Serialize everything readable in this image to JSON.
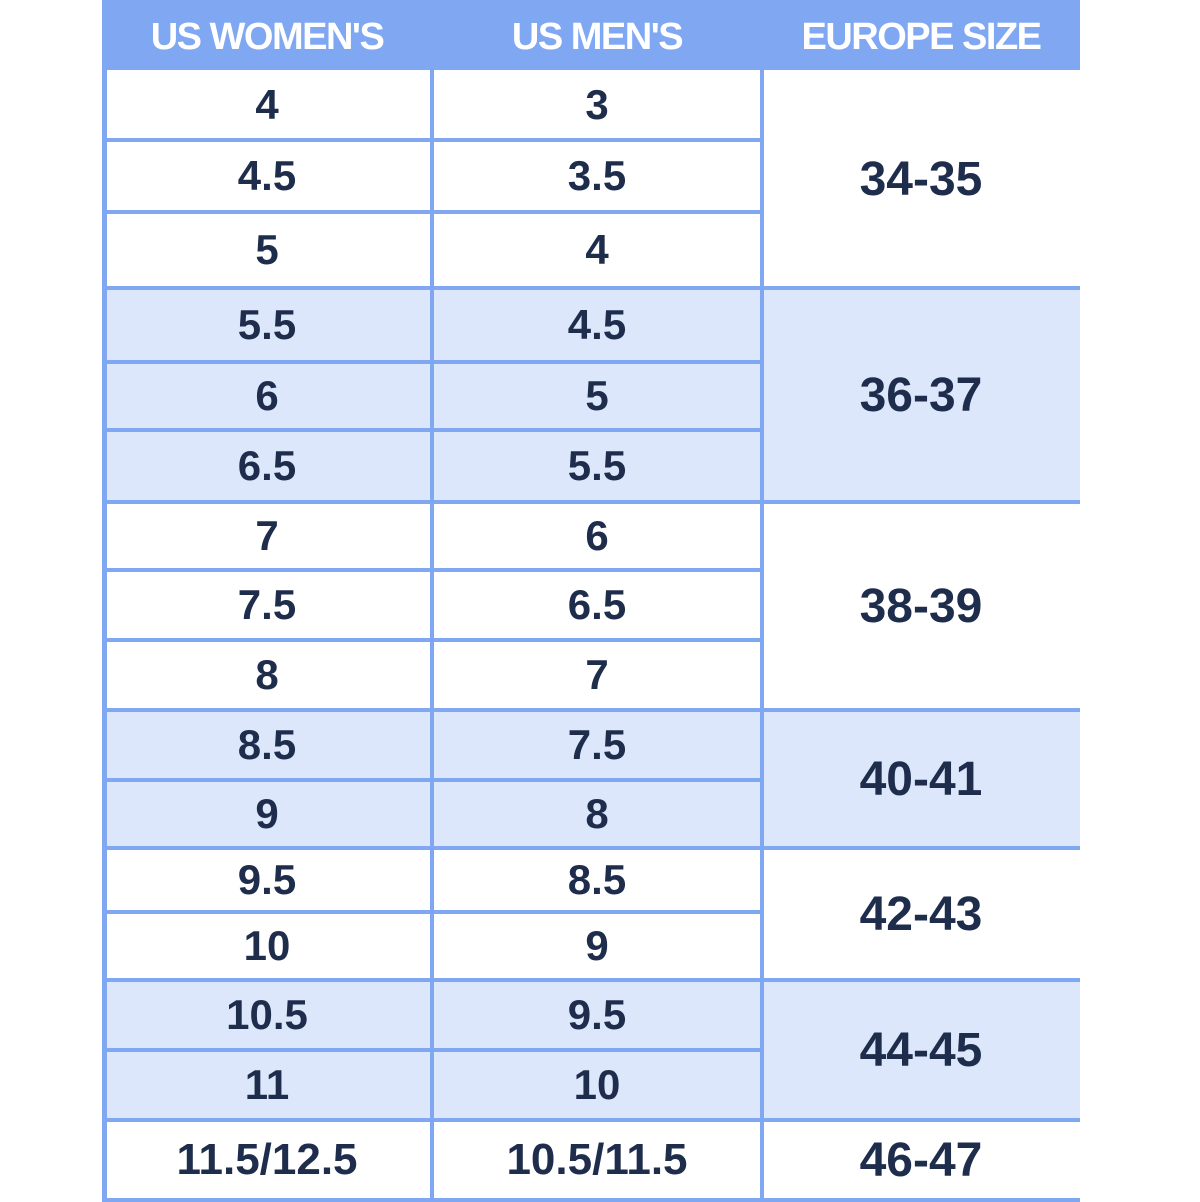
{
  "headers": {
    "us_womens": "US WOMEN'S",
    "us_mens": "US MEN'S",
    "europe": "EUROPE SIZE"
  },
  "rows": [
    {
      "women": "4",
      "men": "3"
    },
    {
      "women": "4.5",
      "men": "3.5"
    },
    {
      "women": "5",
      "men": "4"
    },
    {
      "women": "5.5",
      "men": "4.5"
    },
    {
      "women": "6",
      "men": "5"
    },
    {
      "women": "6.5",
      "men": "5.5"
    },
    {
      "women": "7",
      "men": "6"
    },
    {
      "women": "7.5",
      "men": "6.5"
    },
    {
      "women": "8",
      "men": "7"
    },
    {
      "women": "8.5",
      "men": "7.5"
    },
    {
      "women": "9",
      "men": "8"
    },
    {
      "women": "9.5",
      "men": "8.5"
    },
    {
      "women": "10",
      "men": "9"
    },
    {
      "women": "10.5",
      "men": "9.5"
    },
    {
      "women": "11",
      "men": "10"
    },
    {
      "women": "11.5/12.5",
      "men": "10.5/11.5"
    }
  ],
  "europe_groups": [
    {
      "label": "34-35",
      "row_span": 3
    },
    {
      "label": "36-37",
      "row_span": 3
    },
    {
      "label": "38-39",
      "row_span": 3
    },
    {
      "label": "40-41",
      "row_span": 2
    },
    {
      "label": "42-43",
      "row_span": 2
    },
    {
      "label": "44-45",
      "row_span": 2
    },
    {
      "label": "46-47",
      "row_span": 1
    }
  ],
  "colors": {
    "header_bg": "#7fa7f2",
    "gridline": "#7fa7f2",
    "band_light_blue": "#dde7fb",
    "band_white": "#ffffff",
    "text_dark": "#1f2d4d",
    "header_text": "#ffffff"
  }
}
